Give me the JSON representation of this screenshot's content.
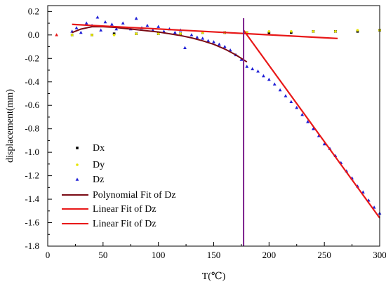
{
  "chart_data": {
    "type": "scatter",
    "xlabel": "T(℃)",
    "ylabel": "displacement(mm)",
    "xlim": [
      0,
      300
    ],
    "ylim": [
      -1.8,
      0.25
    ],
    "xticks": [
      "0",
      "50",
      "100",
      "150",
      "200",
      "250",
      "300"
    ],
    "xtick_values": [
      0,
      50,
      100,
      150,
      200,
      250,
      300
    ],
    "yticks": [
      "0.2",
      "0.0",
      "-0.2",
      "-0.4",
      "-0.6",
      "-0.8",
      "-1.0",
      "-1.2",
      "-1.4",
      "-1.6",
      "-1.8"
    ],
    "ytick_values": [
      0.2,
      0.0,
      -0.2,
      -0.4,
      -0.6,
      -0.8,
      -1.0,
      -1.2,
      -1.4,
      -1.6,
      -1.8
    ],
    "legend_position": "bottom-left",
    "vertical_marker_x": 177,
    "colors": {
      "dx": "#000000",
      "dy": "#e6e600",
      "dz": "#1f1fd6",
      "poly_fit": "#7a0a14",
      "linear_fit": "#e81818",
      "vertical_line": "#7b1f8c",
      "outlier": "#e81818"
    },
    "series": [
      {
        "name": "Dx",
        "marker": "square",
        "x": [
          22,
          40,
          60,
          80,
          100,
          120,
          140,
          160,
          180,
          200,
          220,
          240,
          260,
          280,
          300
        ],
        "y": [
          0.0,
          0.0,
          0.01,
          0.01,
          0.01,
          0.01,
          0.02,
          0.02,
          0.02,
          0.02,
          0.02,
          0.03,
          0.03,
          0.03,
          0.04
        ]
      },
      {
        "name": "Dy",
        "marker": "circle",
        "x": [
          22,
          40,
          60,
          80,
          100,
          120,
          140,
          160,
          180,
          200,
          220,
          240,
          260,
          280,
          300
        ],
        "y": [
          0.0,
          0.0,
          0.0,
          0.01,
          0.01,
          0.01,
          0.02,
          0.02,
          0.02,
          0.03,
          0.03,
          0.03,
          0.03,
          0.04,
          0.04
        ]
      },
      {
        "name": "Dz",
        "marker": "triangle",
        "x": [
          22,
          26,
          30,
          35,
          40,
          45,
          48,
          52,
          58,
          62,
          68,
          75,
          80,
          85,
          90,
          95,
          100,
          105,
          110,
          115,
          120,
          124,
          130,
          135,
          140,
          145,
          150,
          155,
          160,
          165,
          170,
          175,
          180,
          185,
          190,
          195,
          200,
          205,
          210,
          215,
          220,
          225,
          230,
          235,
          240,
          245,
          250,
          255,
          260,
          265,
          270,
          275,
          280,
          285,
          290,
          295,
          300
        ],
        "y": [
          0.03,
          0.06,
          0.02,
          0.1,
          0.08,
          0.15,
          0.04,
          0.11,
          0.09,
          0.05,
          0.1,
          0.05,
          0.14,
          0.06,
          0.08,
          0.04,
          0.07,
          0.03,
          0.05,
          0.02,
          0.04,
          -0.11,
          0.0,
          -0.02,
          -0.03,
          -0.05,
          -0.06,
          -0.08,
          -0.1,
          -0.13,
          -0.17,
          -0.21,
          -0.27,
          -0.29,
          -0.31,
          -0.35,
          -0.38,
          -0.42,
          -0.47,
          -0.52,
          -0.57,
          -0.62,
          -0.68,
          -0.74,
          -0.8,
          -0.86,
          -0.93,
          -0.97,
          -1.03,
          -1.09,
          -1.16,
          -1.22,
          -1.29,
          -1.34,
          -1.41,
          -1.47,
          -1.52
        ]
      }
    ],
    "outlier_point": {
      "x": 8,
      "y": 0.0
    },
    "fits": [
      {
        "name": "Polynomial Fit of Dz",
        "kind": "polynomial",
        "x": [
          22,
          30,
          40,
          50,
          60,
          70,
          80,
          90,
          100,
          110,
          120,
          130,
          140,
          150,
          160,
          170,
          180
        ],
        "y": [
          0.02,
          0.05,
          0.07,
          0.07,
          0.065,
          0.055,
          0.045,
          0.035,
          0.025,
          0.01,
          -0.005,
          -0.025,
          -0.05,
          -0.08,
          -0.12,
          -0.17,
          -0.23
        ]
      },
      {
        "name": "Linear Fit of Dz",
        "kind": "linear",
        "x": [
          22,
          262
        ],
        "y": [
          0.09,
          -0.03
        ]
      },
      {
        "name": "Linear Fit of Dz",
        "kind": "linear",
        "x": [
          177,
          300
        ],
        "y": [
          0.04,
          -1.56
        ]
      }
    ]
  }
}
